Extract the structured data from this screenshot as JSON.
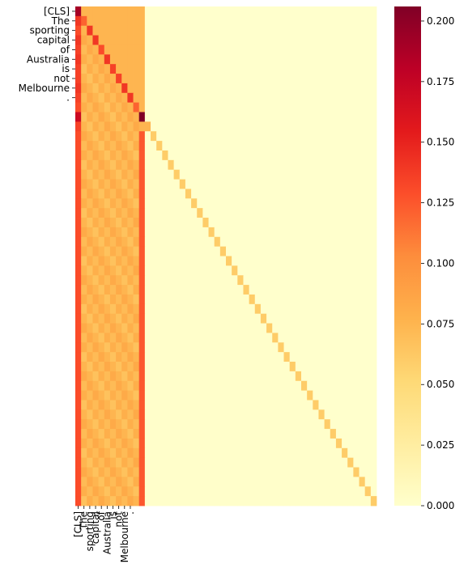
{
  "chart_data": {
    "type": "heatmap",
    "title": "",
    "xlabel": "",
    "ylabel": "",
    "colormap": "YlOrRd",
    "tick_labels": [
      "[CLS]",
      "The",
      "sporting",
      "capital",
      "of",
      "Australia",
      "is",
      "not",
      "Melbourne",
      "."
    ],
    "n_rows": 52,
    "n_cols": 52,
    "colorbar": {
      "vmin": 0.0,
      "vmax": 0.206,
      "ticks": [
        "0.000",
        "0.025",
        "0.050",
        "0.075",
        "0.100",
        "0.125",
        "0.150",
        "0.175",
        "0.200"
      ],
      "tick_values": [
        0.0,
        0.025,
        0.05,
        0.075,
        0.1,
        0.125,
        0.15,
        0.175,
        0.2
      ]
    },
    "row_first_column_values": [
      0.19,
      0.14,
      0.13,
      0.14,
      0.135,
      0.14,
      0.135,
      0.135,
      0.14,
      0.135,
      0.13,
      0.17,
      0.135
    ],
    "row_last_token_column_values": [
      0.11,
      0.1,
      0.1,
      0.11,
      0.11,
      0.115,
      0.115,
      0.115,
      0.115,
      0.12,
      0.14,
      0.206
    ],
    "diagonal_values": [
      0.19,
      0.12,
      0.14,
      0.14,
      0.13,
      0.14,
      0.135,
      0.135,
      0.14,
      0.14,
      0.12,
      0.206
    ],
    "prefix_mid_value": 0.075,
    "padding_row_first_column_value": 0.13,
    "padding_row_last_token_column_value": 0.125,
    "padding_row_diagonal_value": 0.06,
    "padding_row_background_value": 0.001,
    "upper_triangle_value": 0.0
  }
}
